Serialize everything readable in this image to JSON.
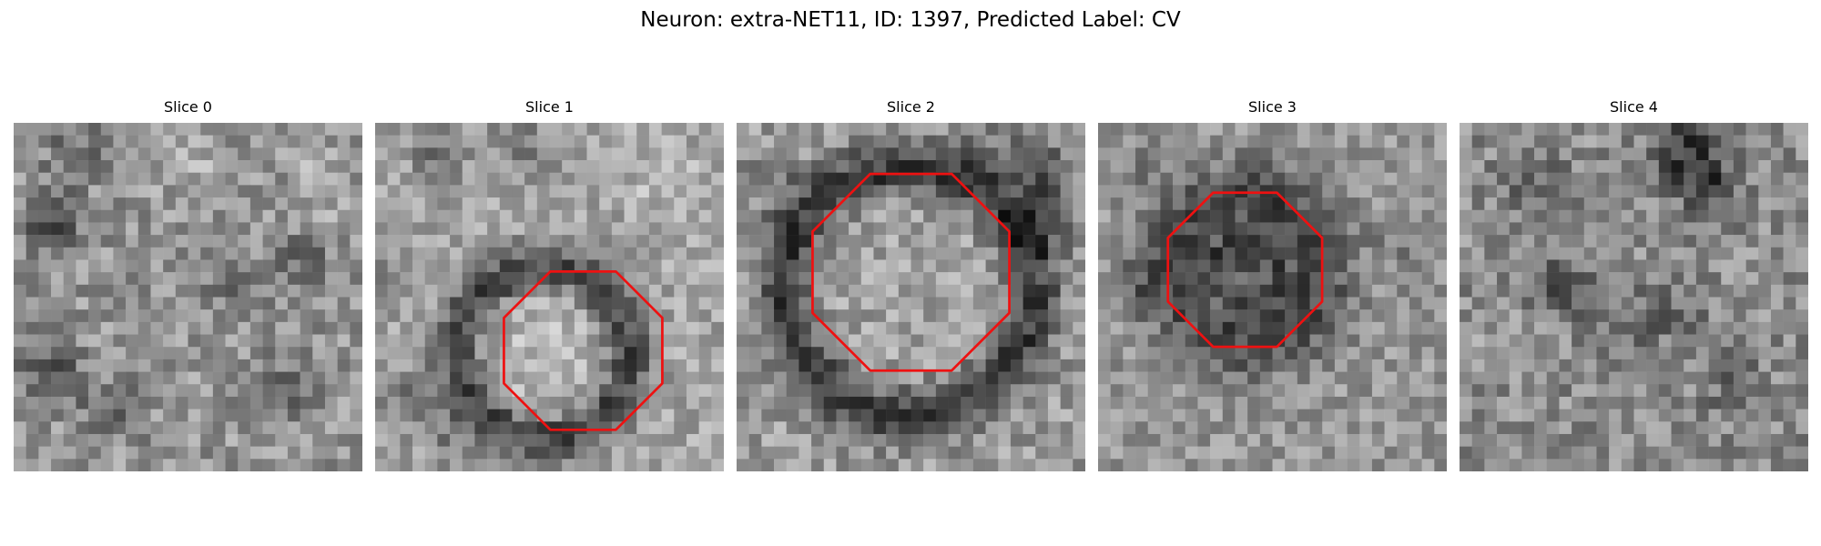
{
  "figure": {
    "title": "Neuron: extra-NET11, ID: 1397, Predicted Label: CV"
  },
  "slices": [
    {
      "label": "Slice 0",
      "outline": false
    },
    {
      "label": "Slice 1",
      "outline": true
    },
    {
      "label": "Slice 2",
      "outline": true
    },
    {
      "label": "Slice 3",
      "outline": true
    },
    {
      "label": "Slice 4",
      "outline": false
    }
  ],
  "colors": {
    "outline": "#ee1111",
    "background": "#ffffff",
    "grayscale_low": "#0a0a0a",
    "grayscale_high": "#f2f2f2"
  }
}
